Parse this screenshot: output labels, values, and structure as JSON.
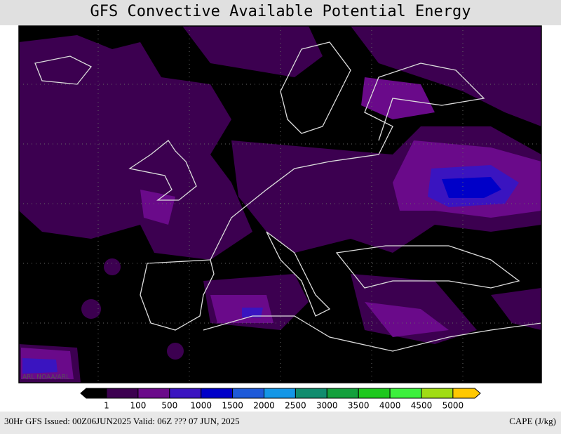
{
  "title": "GFS Convective Available Potential Energy",
  "legend": {
    "labels": [
      "1",
      "100",
      "500",
      "1000",
      "1500",
      "2000",
      "2500",
      "3000",
      "3500",
      "4000",
      "4500",
      "5000"
    ],
    "colors": [
      "#000000",
      "#3c0050",
      "#6a0a8a",
      "#3a14c0",
      "#0000c8",
      "#1e5ad8",
      "#1496e6",
      "#108c6e",
      "#14a03c",
      "#1ec81e",
      "#3cf03c",
      "#a0dc14",
      "#ffc800"
    ]
  },
  "footer": {
    "run": "30Hr GFS Issued: 00Z06JUN2025 Valid: 06Z ??? 07 JUN, 2025",
    "unit": "CAPE (J/kg)"
  },
  "watermark": "ARL NOAA/ARL"
}
